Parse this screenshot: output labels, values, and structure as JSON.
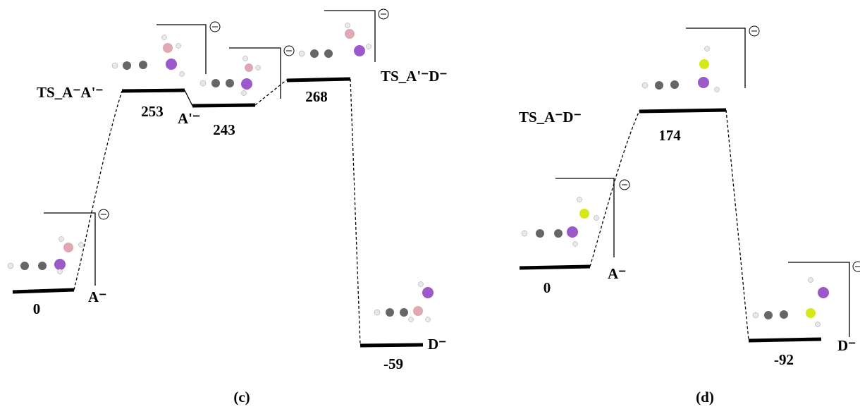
{
  "panels": [
    {
      "caption": "(c)",
      "states": [
        {
          "label": "A⁻",
          "energy": 0
        },
        {
          "label": "TS_A⁻A'⁻",
          "energy": 253
        },
        {
          "label": "A'⁻",
          "energy": 243
        },
        {
          "label": "TS_A'⁻D⁻",
          "energy": 268
        },
        {
          "label": "D⁻",
          "energy": -59
        }
      ]
    },
    {
      "caption": "(d)",
      "states": [
        {
          "label": "A⁻",
          "energy": 0
        },
        {
          "label": "TS_A⁻D⁻",
          "energy": 174
        },
        {
          "label": "D⁻",
          "energy": -92
        }
      ]
    }
  ]
}
